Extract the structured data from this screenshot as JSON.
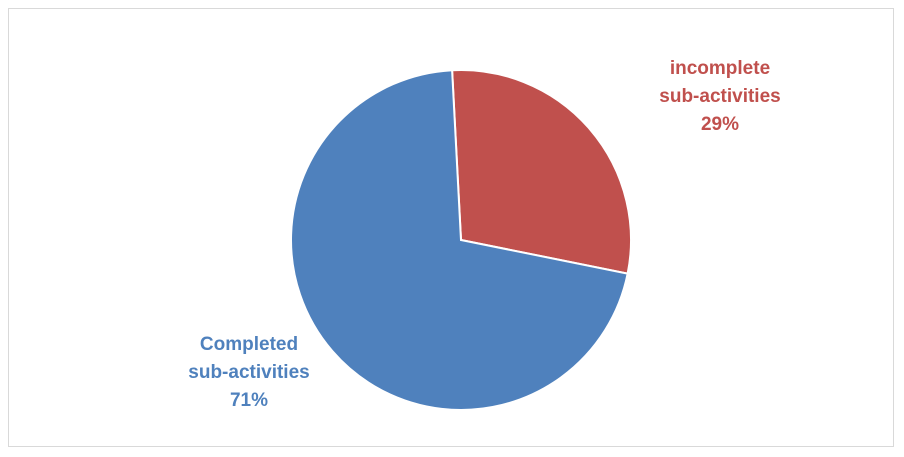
{
  "chart_data": {
    "type": "pie",
    "start_angle_deg": 357,
    "direction": "clockwise",
    "slices": [
      {
        "label_lines": [
          "incomplete",
          "sub-activities"
        ],
        "value_label": "29%",
        "value": 29,
        "color": "#C0504D"
      },
      {
        "label_lines": [
          "Completed",
          "sub-activities"
        ],
        "value_label": "71%",
        "value": 71,
        "color": "#4F81BD"
      }
    ],
    "legend": "none",
    "data_labels": "outside"
  }
}
